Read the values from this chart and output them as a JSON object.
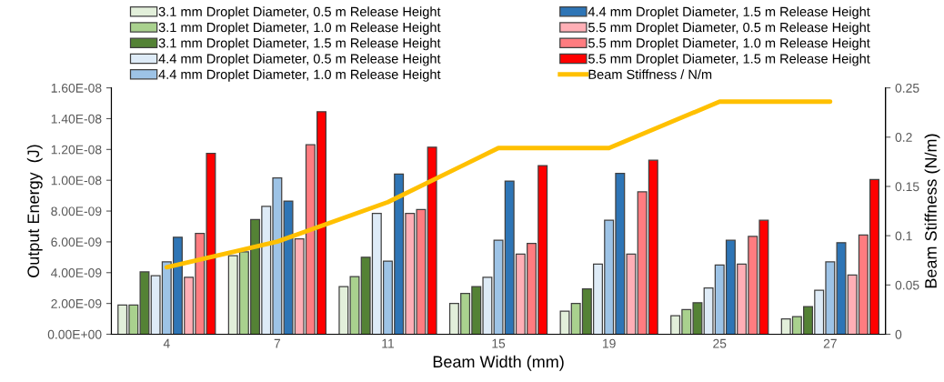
{
  "chart_data": {
    "type": "bar",
    "xlabel": "Beam Width (mm)",
    "ylabel": "Output Energy  (J)",
    "y2label": "Beam Stiffness (N/m)",
    "categories": [
      "4",
      "7",
      "11",
      "15",
      "19",
      "25",
      "27"
    ],
    "series": [
      {
        "name": "3.1 mm Droplet Diameter, 0.5 m Release Height",
        "color": "#e2efda",
        "values": [
          1.9e-09,
          5.1e-09,
          3.1e-09,
          2e-09,
          1.5e-09,
          1.2e-09,
          1e-09
        ]
      },
      {
        "name": "3.1 mm Droplet Diameter, 1.0 m Release Height",
        "color": "#a9d18e",
        "values": [
          1.9e-09,
          5.35e-09,
          3.75e-09,
          2.65e-09,
          2e-09,
          1.6e-09,
          1.15e-09
        ]
      },
      {
        "name": "3.1 mm Droplet Diameter, 1.5 m Release Height",
        "color": "#548235",
        "values": [
          4.05e-09,
          7.45e-09,
          5e-09,
          3.1e-09,
          2.95e-09,
          2.05e-09,
          1.8e-09
        ]
      },
      {
        "name": "4.4 mm Droplet Diameter, 0.5 m Release Height",
        "color": "#deebf7",
        "values": [
          3.8e-09,
          8.3e-09,
          7.85e-09,
          3.7e-09,
          4.55e-09,
          3e-09,
          2.85e-09
        ]
      },
      {
        "name": "4.4 mm Droplet Diameter, 1.0 m Release Height",
        "color": "#9dc3e6",
        "values": [
          4.7e-09,
          1.015e-08,
          4.75e-09,
          6.1e-09,
          7.4e-09,
          4.5e-09,
          4.7e-09
        ]
      },
      {
        "name": "4.4 mm Droplet Diameter, 1.5 m Release Height",
        "color": "#2e75b6",
        "values": [
          6.3e-09,
          8.65e-09,
          1.04e-08,
          9.95e-09,
          1.045e-08,
          6.1e-09,
          5.95e-09
        ]
      },
      {
        "name": "5.5 mm Droplet Diameter, 0.5 m Release Height",
        "color": "#ffafb6",
        "values": [
          3.7e-09,
          6.2e-09,
          7.85e-09,
          5.2e-09,
          5.2e-09,
          4.55e-09,
          3.85e-09
        ]
      },
      {
        "name": "5.5 mm Droplet Diameter, 1.0 m Release Height",
        "color": "#ff7c80",
        "values": [
          6.55e-09,
          1.23e-08,
          8.1e-09,
          5.9e-09,
          9.25e-09,
          6.35e-09,
          6.45e-09
        ]
      },
      {
        "name": "5.5 mm Droplet Diameter, 1.5 m Release Height",
        "color": "#ff0000",
        "values": [
          1.175e-08,
          1.445e-08,
          1.215e-08,
          1.095e-08,
          1.13e-08,
          7.4e-09,
          1.005e-08
        ]
      },
      {
        "name": "Beam Stiffness / N/m",
        "type": "line",
        "axis": "y2",
        "color": "#ffc000",
        "values": [
          0.068,
          0.094,
          0.134,
          0.189,
          0.189,
          0.236,
          0.236
        ]
      }
    ],
    "ylim": [
      0,
      1.6e-08
    ],
    "yticks": [
      {
        "value": 0,
        "label": "0.00E+00"
      },
      {
        "value": 2e-09,
        "label": "2.00E-09"
      },
      {
        "value": 4e-09,
        "label": "4.00E-09"
      },
      {
        "value": 6e-09,
        "label": "6.00E-09"
      },
      {
        "value": 8e-09,
        "label": "8.00E-09"
      },
      {
        "value": 1e-08,
        "label": "1.00E-08"
      },
      {
        "value": 1.2e-08,
        "label": "1.20E-08"
      },
      {
        "value": 1.4e-08,
        "label": "1.40E-08"
      },
      {
        "value": 1.6e-08,
        "label": "1.60E-08"
      }
    ],
    "y2lim": [
      0,
      0.25
    ],
    "y2ticks": [
      0,
      0.05,
      0.1,
      0.15,
      0.2,
      0.25
    ],
    "legend": "top",
    "grid": false
  }
}
